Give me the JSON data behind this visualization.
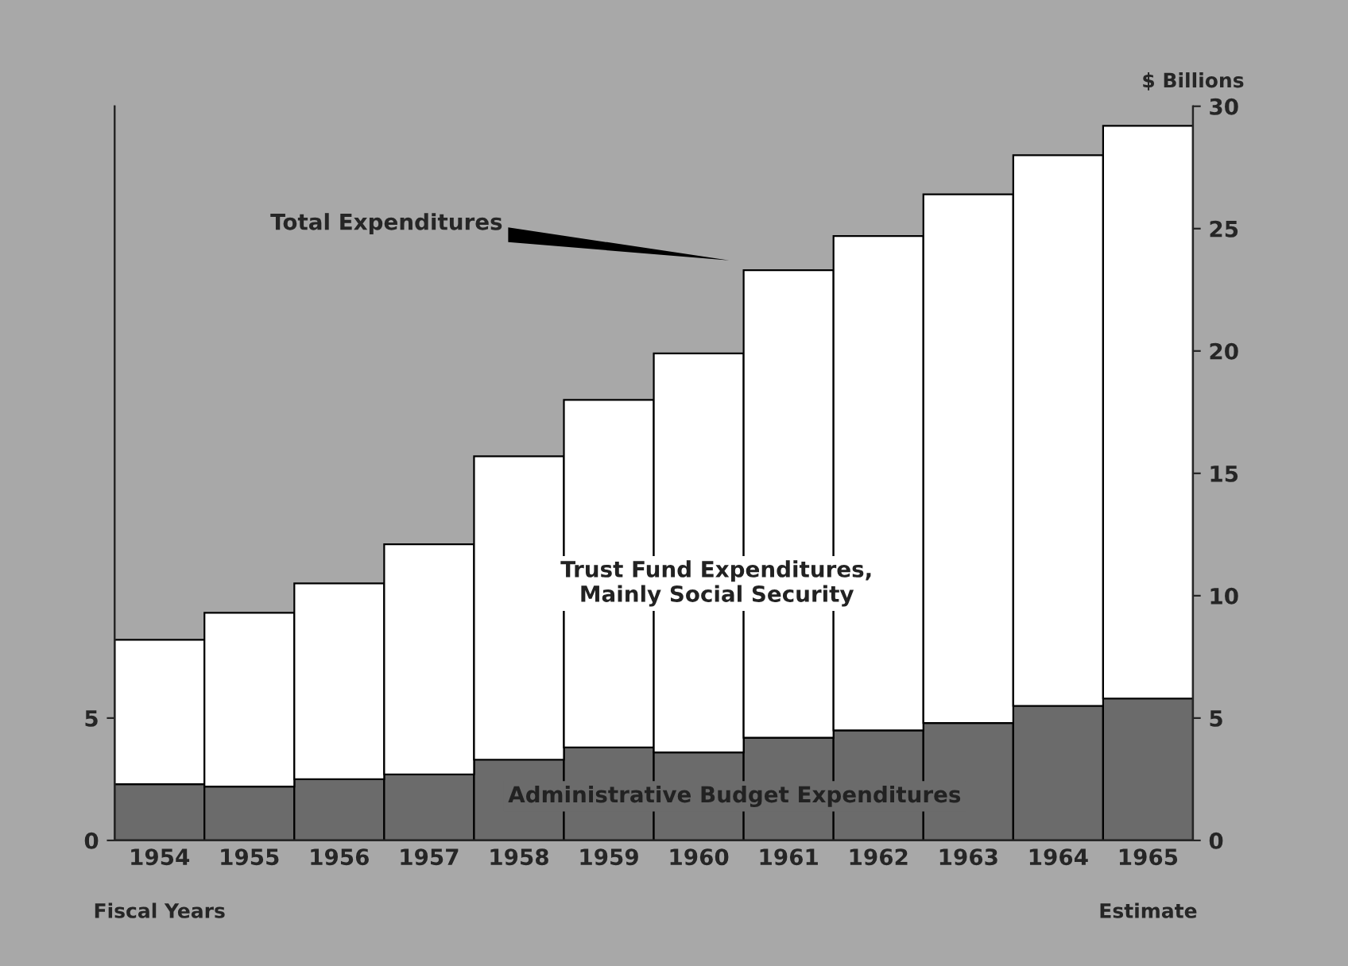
{
  "chart_data": {
    "type": "bar",
    "stacked": true,
    "categories": [
      "1954",
      "1955",
      "1956",
      "1957",
      "1958",
      "1959",
      "1960",
      "1961",
      "1962",
      "1963",
      "1964",
      "1965"
    ],
    "series": [
      {
        "name": "Administrative Budget Expenditures",
        "color": "#6b6b6b",
        "values": [
          2.3,
          2.2,
          2.5,
          2.7,
          3.3,
          3.8,
          3.6,
          4.2,
          4.5,
          4.8,
          5.5,
          5.8
        ]
      },
      {
        "name": "Trust Fund Expenditures,\nMainly Social Security",
        "color": "#ffffff",
        "values": [
          5.9,
          7.1,
          8.0,
          9.4,
          12.4,
          14.2,
          16.3,
          19.1,
          20.2,
          21.6,
          22.5,
          23.4
        ]
      }
    ],
    "xlabel": "Fiscal Years",
    "y2label": "$ Billions",
    "ylim": [
      0,
      30
    ],
    "yticks": [
      0,
      5
    ],
    "y2lim": [
      0,
      30
    ],
    "y2ticks": [
      0,
      5,
      10,
      15,
      20,
      25,
      30
    ],
    "annotations": [
      "Total Expenditures",
      "Estimate"
    ],
    "grid": false,
    "legend": false
  }
}
